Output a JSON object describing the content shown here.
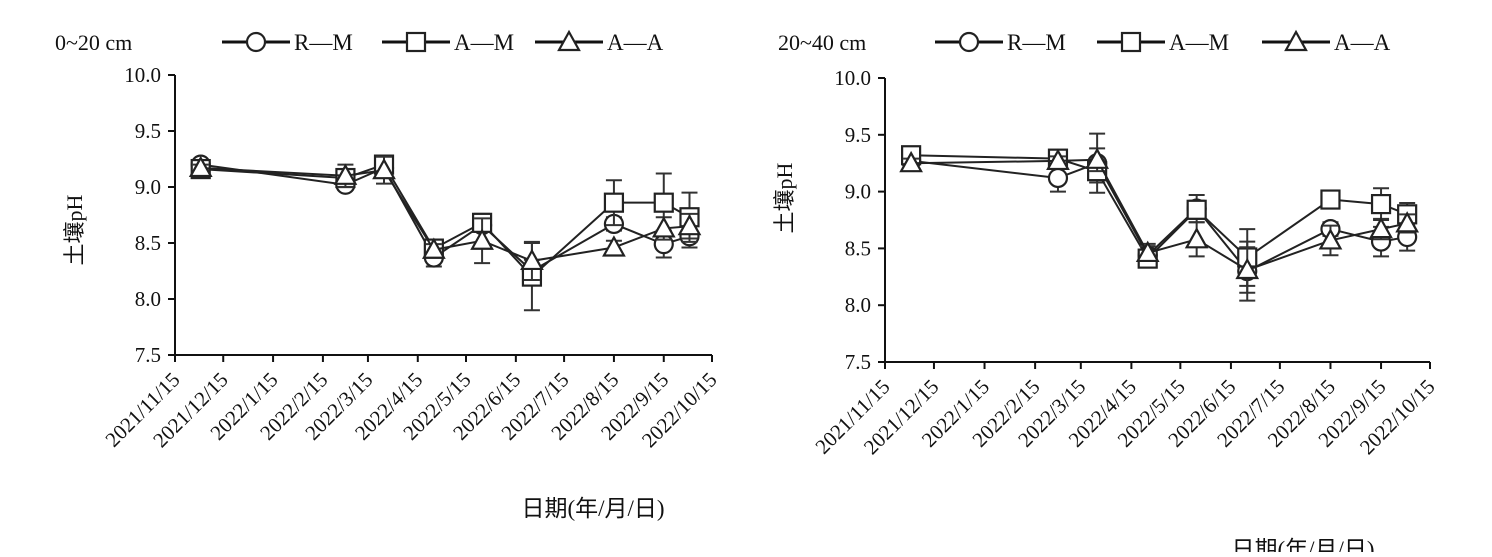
{
  "chart_data": [
    {
      "type": "line",
      "title": "0~20 cm",
      "xlabel": "日期(年/月/日)",
      "ylabel": "土壤pH",
      "ylim": [
        7.5,
        10.0
      ],
      "yticks": [
        "10.0",
        "9.5",
        "9.0",
        "8.5",
        "8.0",
        "7.5"
      ],
      "xticks": [
        "2021/11/15",
        "2021/12/15",
        "2022/1/15",
        "2022/2/15",
        "2022/3/15",
        "2022/4/15",
        "2022/5/15",
        "2022/6/15",
        "2022/7/15",
        "2022/8/15",
        "2022/9/15",
        "2022/10/15"
      ],
      "x": [
        "2021/12/1",
        "2022/3/1",
        "2022/3/25",
        "2022/4/25",
        "2022/5/25",
        "2022/6/25",
        "2022/8/15",
        "2022/9/15",
        "2022/10/1"
      ],
      "series": [
        {
          "name": "R—M",
          "marker": "circle",
          "values": [
            9.2,
            9.02,
            9.17,
            8.37,
            8.66,
            8.25,
            8.67,
            8.49,
            8.56
          ],
          "errors": [
            0.03,
            0.04,
            0.05,
            0.08,
            0.06,
            0.1,
            0.06,
            0.12,
            0.1
          ]
        },
        {
          "name": "A—M",
          "marker": "square",
          "values": [
            9.16,
            9.08,
            9.2,
            8.45,
            8.68,
            8.2,
            8.86,
            8.86,
            8.73
          ],
          "errors": [
            0.03,
            0.07,
            0.06,
            0.05,
            0.08,
            0.3,
            0.2,
            0.26,
            0.22
          ]
        },
        {
          "name": "A—A",
          "marker": "triangle",
          "values": [
            9.17,
            9.1,
            9.15,
            8.44,
            8.52,
            8.34,
            8.46,
            8.63,
            8.65
          ],
          "errors": [
            0.03,
            0.1,
            0.12,
            0.05,
            0.2,
            0.17,
            0.06,
            0.1,
            0.11
          ]
        }
      ]
    },
    {
      "type": "line",
      "title": "20~40 cm",
      "xlabel": "日期(年/月/日)",
      "ylabel": "土壤pH",
      "ylim": [
        7.5,
        10.0
      ],
      "yticks": [
        "10.0",
        "9.5",
        "9.0",
        "8.5",
        "8.0",
        "7.5"
      ],
      "xticks": [
        "2021/11/15",
        "2021/12/15",
        "2022/1/15",
        "2022/2/15",
        "2022/3/15",
        "2022/4/15",
        "2022/5/15",
        "2022/6/15",
        "2022/7/15",
        "2022/8/15",
        "2022/9/15",
        "2022/10/15"
      ],
      "x": [
        "2021/12/1",
        "2022/3/1",
        "2022/3/25",
        "2022/4/25",
        "2022/5/25",
        "2022/6/25",
        "2022/8/15",
        "2022/9/15",
        "2022/10/1"
      ],
      "series": [
        {
          "name": "R—M",
          "marker": "circle",
          "values": [
            9.27,
            9.12,
            9.25,
            8.44,
            8.85,
            8.3,
            8.67,
            8.56,
            8.6
          ],
          "errors": [
            0.04,
            0.12,
            0.26,
            0.1,
            0.12,
            0.26,
            0.06,
            0.13,
            0.12
          ]
        },
        {
          "name": "A—M",
          "marker": "square",
          "values": [
            9.32,
            9.29,
            9.18,
            8.41,
            8.84,
            8.42,
            8.93,
            8.89,
            8.8
          ],
          "errors": [
            0.03,
            0.04,
            0.1,
            0.07,
            0.08,
            0.25,
            0.04,
            0.14,
            0.1
          ]
        },
        {
          "name": "A—A",
          "marker": "triangle",
          "values": [
            9.25,
            9.27,
            9.28,
            8.46,
            8.58,
            8.31,
            8.57,
            8.67,
            8.72
          ],
          "errors": [
            0.04,
            0.04,
            0.1,
            0.06,
            0.15,
            0.2,
            0.13,
            0.09,
            0.08
          ]
        }
      ]
    }
  ]
}
